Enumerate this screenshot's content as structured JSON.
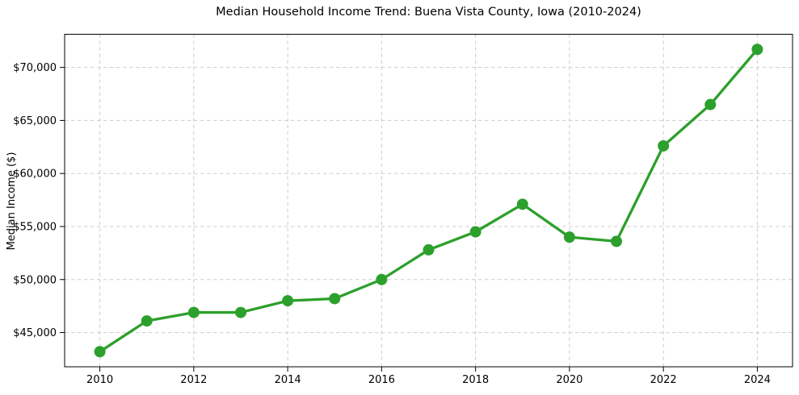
{
  "chart_data": {
    "type": "line",
    "title": "Median Household Income Trend: Buena Vista County, Iowa (2010-2024)",
    "xlabel": "",
    "ylabel": "Median Income ($)",
    "series_name": "Median Household Income",
    "x": [
      2010,
      2011,
      2012,
      2013,
      2014,
      2015,
      2016,
      2017,
      2018,
      2019,
      2020,
      2021,
      2022,
      2023,
      2024
    ],
    "values": [
      43200,
      46100,
      46900,
      46900,
      48000,
      48200,
      50000,
      52800,
      54500,
      57100,
      54000,
      53600,
      62600,
      66500,
      71700
    ],
    "xlim": [
      2009.25,
      2024.75
    ],
    "ylim": [
      41775,
      73125
    ],
    "xticks": {
      "values": [
        2010,
        2012,
        2014,
        2016,
        2018,
        2020,
        2022,
        2024
      ],
      "labels": [
        "2010",
        "2012",
        "2014",
        "2016",
        "2018",
        "2020",
        "2022",
        "2024"
      ]
    },
    "yticks": {
      "values": [
        45000,
        50000,
        55000,
        60000,
        65000,
        70000
      ],
      "labels": [
        "$45,000",
        "$50,000",
        "$55,000",
        "$60,000",
        "$65,000",
        "$70,000"
      ]
    },
    "grid": true,
    "grid_style": "dashed",
    "legend": "none",
    "style": {
      "line_color": "#2ca02c",
      "marker_color": "#2ca02c",
      "grid_color": "#cdcdcd",
      "spine_color": "#000000",
      "text_color": "#000000",
      "background": "#ffffff",
      "line_width": 3.3,
      "marker_radius": 7
    }
  }
}
